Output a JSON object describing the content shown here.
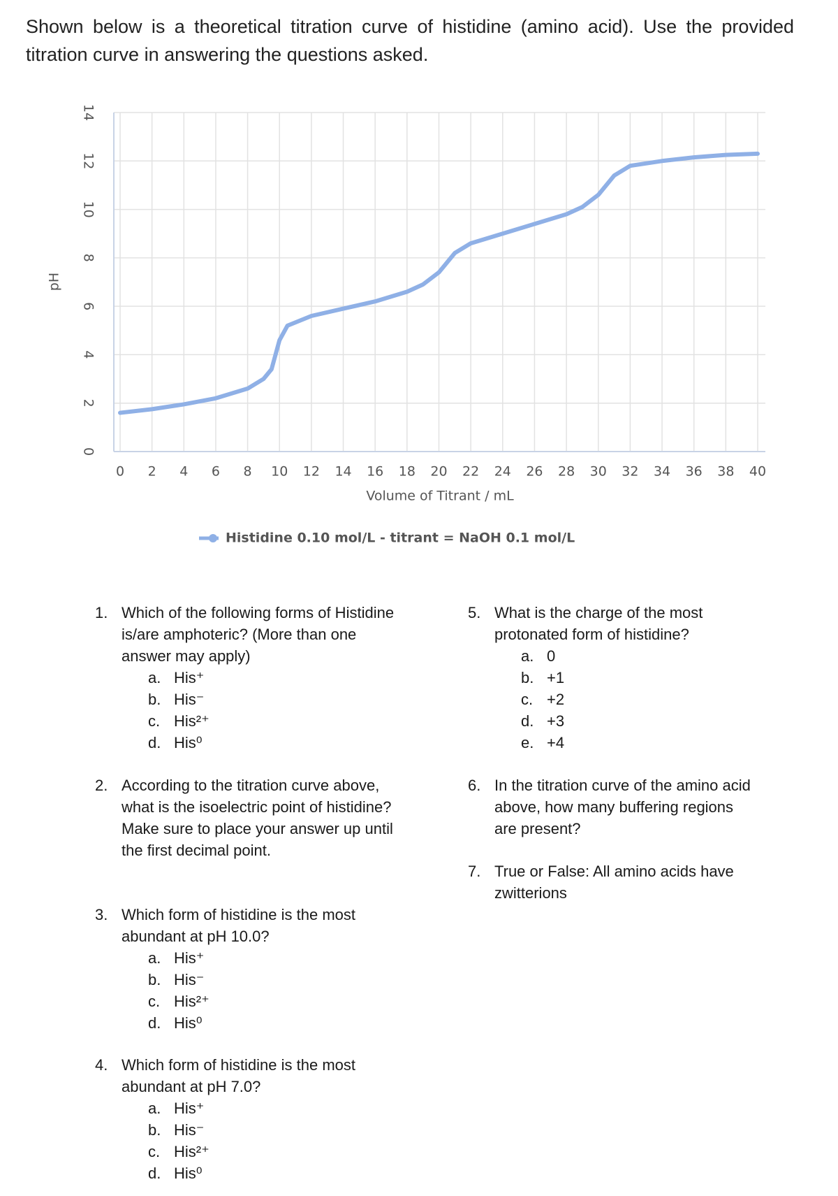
{
  "intro": "Shown below is a theoretical titration curve of histidine (amino acid). Use the provided titration curve in answering the questions asked.",
  "chart_data": {
    "type": "line",
    "x_label": "Volume of Titrant / mL",
    "y_label": "pH",
    "x": [
      0,
      2,
      4,
      6,
      8,
      9,
      9.5,
      10,
      10.5,
      12,
      14,
      16,
      18,
      19,
      20,
      21,
      22,
      24,
      26,
      28,
      29,
      30,
      31,
      32,
      34,
      36,
      38,
      40
    ],
    "series": [
      {
        "name": "Histidine 0.10 mol/L - titrant = NaOH 0.1 mol/L",
        "color": "#8fb0e6",
        "values": [
          1.6,
          1.75,
          1.95,
          2.2,
          2.6,
          3.0,
          3.4,
          4.6,
          5.2,
          5.6,
          5.9,
          6.2,
          6.6,
          6.9,
          7.4,
          8.2,
          8.6,
          9.0,
          9.4,
          9.8,
          10.1,
          10.6,
          11.4,
          11.8,
          12.0,
          12.15,
          12.25,
          12.3
        ]
      }
    ],
    "xlim": [
      0,
      40
    ],
    "ylim": [
      0,
      14
    ],
    "xticks": [
      0,
      2,
      4,
      6,
      8,
      10,
      12,
      14,
      16,
      18,
      20,
      22,
      24,
      26,
      28,
      30,
      32,
      34,
      36,
      38,
      40
    ],
    "yticks": [
      0,
      2,
      4,
      6,
      8,
      10,
      12,
      14
    ],
    "grid": true,
    "legend": "bottom"
  },
  "questions": [
    {
      "number": "1.",
      "text": "Which of the following forms of Histidine is/are amphoteric? (More than one answer may apply)",
      "options": [
        {
          "letter": "a.",
          "text": "His⁺"
        },
        {
          "letter": "b.",
          "text": "His⁻"
        },
        {
          "letter": "c.",
          "text": "His²⁺"
        },
        {
          "letter": "d.",
          "text": "His⁰"
        }
      ]
    },
    {
      "number": "2.",
      "text": "According to the titration curve above, what is the isoelectric point of histidine? Make sure to place your answer up until the first decimal point.",
      "options": []
    },
    {
      "number": "3.",
      "text": "Which form of histidine is the most abundant at pH 10.0?",
      "options": [
        {
          "letter": "a.",
          "text": "His⁺"
        },
        {
          "letter": "b.",
          "text": "His⁻"
        },
        {
          "letter": "c.",
          "text": "His²⁺"
        },
        {
          "letter": "d.",
          "text": "His⁰"
        }
      ]
    },
    {
      "number": "4.",
      "text": "Which form of histidine is the most abundant at pH 7.0?",
      "options": [
        {
          "letter": "a.",
          "text": "His⁺"
        },
        {
          "letter": "b.",
          "text": "His⁻"
        },
        {
          "letter": "c.",
          "text": "His²⁺"
        },
        {
          "letter": "d.",
          "text": "His⁰"
        }
      ]
    },
    {
      "number": "5.",
      "text": "What is the charge of the most protonated form of histidine?",
      "options": [
        {
          "letter": "a.",
          "text": "0"
        },
        {
          "letter": "b.",
          "text": "+1"
        },
        {
          "letter": "c.",
          "text": "+2"
        },
        {
          "letter": "d.",
          "text": "+3"
        },
        {
          "letter": "e.",
          "text": "+4"
        }
      ]
    },
    {
      "number": "6.",
      "text": "In the titration curve of the amino acid above, how many buffering regions are present?",
      "options": []
    },
    {
      "number": "7.",
      "text": "True or False: All amino acids have zwitterions",
      "options": []
    }
  ]
}
